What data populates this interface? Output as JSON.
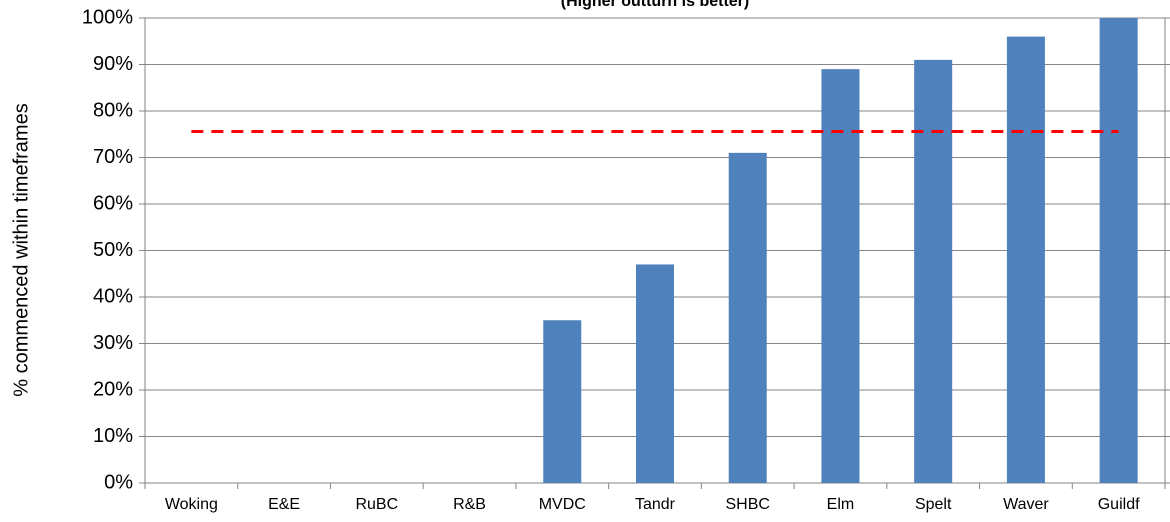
{
  "chart_data": {
    "type": "bar",
    "subtitle": "(Higher outturn is better)",
    "y_label": "% commenced within timeframes",
    "categories": [
      "Woking",
      "E&E",
      "RuBC",
      "R&B",
      "MVDC",
      "Tandr",
      "SHBC",
      "Elm",
      "Spelt",
      "Waver",
      "Guildf"
    ],
    "values": [
      0,
      0,
      0,
      0,
      35,
      47,
      71,
      89,
      91,
      96,
      100
    ],
    "color": "#4f81bd",
    "ylim": [
      0,
      100
    ],
    "yticks": [
      {
        "value": 0,
        "label": "0%"
      },
      {
        "value": 10,
        "label": "10%"
      },
      {
        "value": 20,
        "label": "20%"
      },
      {
        "value": 30,
        "label": "30%"
      },
      {
        "value": 40,
        "label": "40%"
      },
      {
        "value": 50,
        "label": "50%"
      },
      {
        "value": 60,
        "label": "60%"
      },
      {
        "value": 70,
        "label": "70%"
      },
      {
        "value": 80,
        "label": "80%"
      },
      {
        "value": 90,
        "label": "90%"
      },
      {
        "value": 100,
        "label": "100%"
      }
    ],
    "grid": true,
    "reference_line": {
      "value": 75.6,
      "color": "#ff0000",
      "style": "dashed"
    }
  }
}
